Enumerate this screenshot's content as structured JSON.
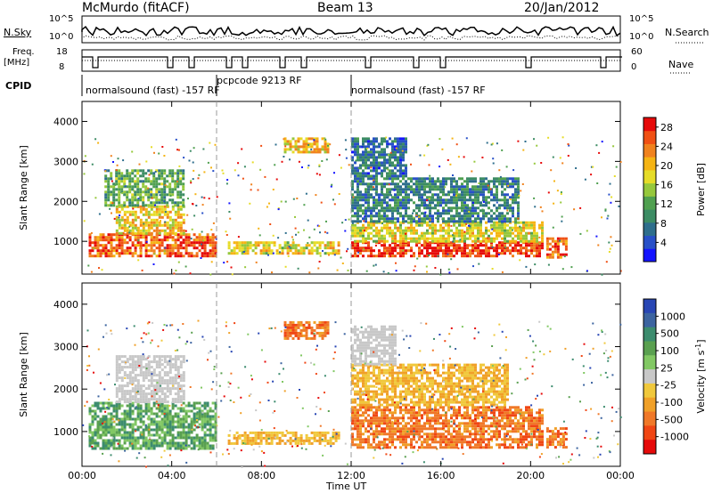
{
  "header": {
    "station": "McMurdo (fitACF)",
    "beam": "Beam 13",
    "date": "20/Jan/2012"
  },
  "top_strip": {
    "nsky_label": "N.Sky",
    "nsearch_label": "N.Search",
    "left_ticks": [
      "10^5",
      "10^0"
    ],
    "right_ticks": [
      "10^5",
      "10^0"
    ],
    "freq_label_1": "Freq.",
    "freq_label_2": "[MHz]",
    "freq_ticks": [
      "18",
      "8"
    ],
    "nave_label": "Nave",
    "nave_ticks": [
      "60",
      "0"
    ],
    "cpid_label": "CPID",
    "cpid_segments": [
      {
        "text": "normalsound (fast) -157 RF",
        "start_hour": 0
      },
      {
        "text": "pcpcode 9213 RF",
        "start_hour": 6
      },
      {
        "text": "normalsound (fast) -157 RF",
        "start_hour": 12
      }
    ]
  },
  "colors": {
    "power": [
      "#1414ff",
      "#2850c8",
      "#2e6e8c",
      "#3c8c64",
      "#50a050",
      "#96c83c",
      "#e6dc28",
      "#f5b414",
      "#f0821e",
      "#f05014",
      "#e60a0a"
    ],
    "velocity": [
      "#2846b4",
      "#3c64a0",
      "#3c8c6e",
      "#5aa050",
      "#82c864",
      "#c8c8c8",
      "#f0c83c",
      "#f0a028",
      "#f07828",
      "#f04614",
      "#e60a0a"
    ]
  },
  "chart_data": [
    {
      "type": "heatmap",
      "title": "",
      "xlabel": "Time UT",
      "ylabel": "Slant Range [km]",
      "xlim": [
        0,
        24
      ],
      "ylim": [
        180,
        4500
      ],
      "x_ticks": [
        "00:00",
        "04:00",
        "08:00",
        "12:00",
        "16:00",
        "20:00",
        "00:00"
      ],
      "y_ticks": [
        "1000",
        "2000",
        "3000",
        "4000"
      ],
      "colorbar_label": "Power [dB]",
      "colorbar_ticks": [
        "4",
        "8",
        "12",
        "16",
        "20",
        "24",
        "28"
      ],
      "colorbar_range": [
        0,
        30
      ],
      "dashed_lines_hours": [
        6,
        12
      ],
      "echo_regions": [
        {
          "t0": 0.3,
          "t1": 6.0,
          "r0": 600,
          "r1": 1200,
          "value": 26
        },
        {
          "t0": 1.5,
          "t1": 4.5,
          "r0": 1200,
          "r1": 1900,
          "value": 20
        },
        {
          "t0": 1.0,
          "t1": 4.5,
          "r0": 1900,
          "r1": 2800,
          "value": 12
        },
        {
          "t0": 6.5,
          "t1": 11.5,
          "r0": 700,
          "r1": 1000,
          "value": 18
        },
        {
          "t0": 9.0,
          "t1": 11.0,
          "r0": 3200,
          "r1": 3600,
          "value": 20
        },
        {
          "t0": 12.0,
          "t1": 20.5,
          "r0": 600,
          "r1": 1000,
          "value": 28
        },
        {
          "t0": 12.0,
          "t1": 20.5,
          "r0": 1000,
          "r1": 1500,
          "value": 18
        },
        {
          "t0": 12.0,
          "t1": 19.5,
          "r0": 1500,
          "r1": 2600,
          "value": 8
        },
        {
          "t0": 12.0,
          "t1": 14.5,
          "r0": 2600,
          "r1": 3600,
          "value": 6
        },
        {
          "t0": 20.7,
          "t1": 21.6,
          "r0": 600,
          "r1": 1100,
          "value": 26
        }
      ]
    },
    {
      "type": "heatmap",
      "title": "",
      "xlabel": "Time UT",
      "ylabel": "Slant Range [km]",
      "xlim": [
        0,
        24
      ],
      "ylim": [
        180,
        4500
      ],
      "x_ticks": [
        "00:00",
        "04:00",
        "08:00",
        "12:00",
        "16:00",
        "20:00",
        "00:00"
      ],
      "y_ticks": [
        "1000",
        "2000",
        "3000",
        "4000"
      ],
      "colorbar_label": "Velocity [m s",
      "colorbar_label_sup": "-1",
      "colorbar_label_end": "]",
      "colorbar_ticks": [
        "1000",
        "500",
        "100",
        "25",
        "-25",
        "-100",
        "-500",
        "-1000"
      ],
      "dashed_lines_hours": [
        6,
        12
      ],
      "echo_regions": [
        {
          "t0": 0.3,
          "t1": 6.0,
          "r0": 600,
          "r1": 1700,
          "category": "green"
        },
        {
          "t0": 1.5,
          "t1": 4.5,
          "r0": 1700,
          "r1": 2800,
          "category": "grey"
        },
        {
          "t0": 6.5,
          "t1": 11.5,
          "r0": 700,
          "r1": 1000,
          "category": "yellow"
        },
        {
          "t0": 9.0,
          "t1": 11.0,
          "r0": 3200,
          "r1": 3600,
          "category": "orange"
        },
        {
          "t0": 12.0,
          "t1": 20.5,
          "r0": 600,
          "r1": 1600,
          "category": "orange"
        },
        {
          "t0": 12.0,
          "t1": 19.0,
          "r0": 1600,
          "r1": 2600,
          "category": "yellow"
        },
        {
          "t0": 12.0,
          "t1": 14.0,
          "r0": 2600,
          "r1": 3500,
          "category": "grey"
        },
        {
          "t0": 20.7,
          "t1": 21.6,
          "r0": 600,
          "r1": 1100,
          "category": "orange"
        }
      ]
    }
  ]
}
